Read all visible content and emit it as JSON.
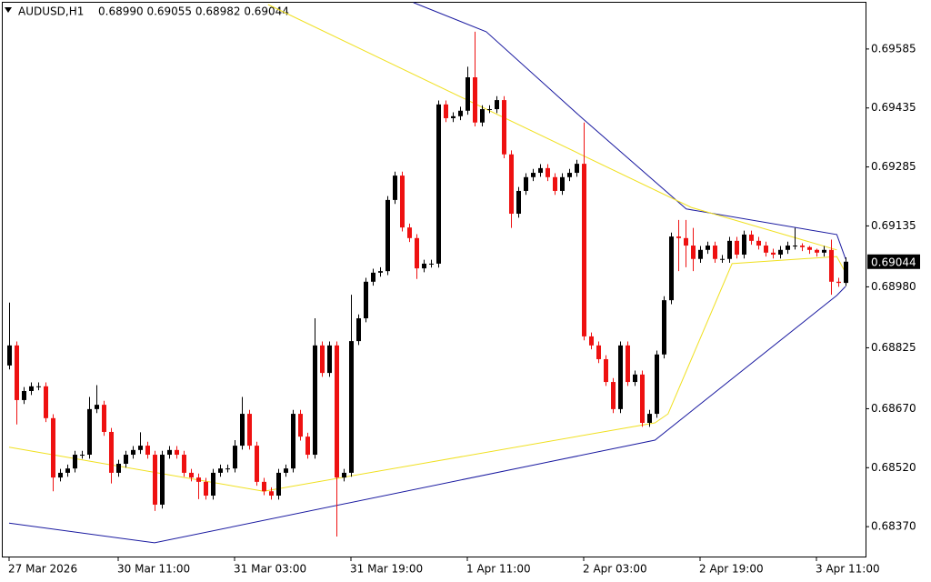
{
  "chart_data": {
    "type": "candlestick",
    "title": "AUDUSD,H1",
    "info": "0.68990 0.69055 0.68982 0.69044",
    "up_color": "#000000",
    "down_color": "#ee1111",
    "ylim": [
      0.68294,
      0.69705
    ],
    "yticks": [
      0.69585,
      0.69435,
      0.69285,
      0.69135,
      {
        "value": 0.6898,
        "label": "0.68980"
      },
      0.68825,
      {
        "value": 0.6867,
        "label": "0.68670"
      },
      {
        "value": 0.6852,
        "label": "0.68520"
      },
      {
        "value": 0.6837,
        "label": "0.68370"
      }
    ],
    "current_price": 0.69044,
    "categories": [
      "27 Mar 2026",
      null,
      null,
      null,
      null,
      null,
      null,
      null,
      null,
      null,
      null,
      null,
      null,
      null,
      null,
      "30 Mar 11:00",
      null,
      null,
      null,
      null,
      null,
      null,
      null,
      null,
      null,
      null,
      null,
      null,
      null,
      null,
      null,
      "31 Mar 03:00",
      null,
      null,
      null,
      null,
      null,
      null,
      null,
      null,
      null,
      null,
      null,
      null,
      null,
      null,
      null,
      "31 Mar 19:00",
      null,
      null,
      null,
      null,
      null,
      null,
      null,
      null,
      null,
      null,
      null,
      null,
      null,
      null,
      null,
      "1 Apr 11:00",
      null,
      null,
      null,
      null,
      null,
      null,
      null,
      null,
      null,
      null,
      null,
      null,
      null,
      null,
      null,
      "2 Apr 03:00",
      null,
      null,
      null,
      null,
      null,
      null,
      null,
      null,
      null,
      null,
      null,
      null,
      null,
      null,
      null,
      "2 Apr 19:00",
      null,
      null,
      null,
      null,
      null,
      null,
      null,
      null,
      null,
      null,
      null,
      null,
      null,
      null,
      null,
      "3 Apr 11:00",
      null,
      null,
      null,
      null
    ],
    "open": [
      0.6878,
      0.68831,
      0.68692,
      0.68715,
      0.68727,
      0.68727,
      0.68646,
      0.68495,
      0.68507,
      0.68518,
      0.68553,
      0.68553,
      0.68669,
      0.6868,
      0.68611,
      0.68507,
      0.6853,
      0.68553,
      0.68565,
      0.68576,
      0.68553,
      0.68426,
      0.68553,
      0.68565,
      0.68553,
      0.68507,
      0.68495,
      0.68484,
      0.68449,
      0.68507,
      0.68518,
      0.68518,
      0.68576,
      0.68657,
      0.68576,
      0.68484,
      0.6846,
      0.68449,
      0.68507,
      0.68518,
      0.68657,
      0.68599,
      0.68553,
      0.68831,
      0.68761,
      0.68831,
      0.68495,
      0.68507,
      0.68842,
      0.689,
      0.68993,
      0.69016,
      0.6902,
      0.69201,
      0.69263,
      0.69131,
      0.69104,
      0.69027,
      0.69039,
      0.69039,
      0.69444,
      0.69409,
      0.69414,
      0.69428,
      0.69513,
      0.69398,
      0.69432,
      0.69432,
      0.69455,
      0.69317,
      0.69166,
      0.69224,
      0.69259,
      0.6927,
      0.69282,
      0.69259,
      0.69224,
      0.69259,
      0.6927,
      0.69293,
      0.68854,
      0.68831,
      0.68796,
      0.68738,
      0.68669,
      0.68831,
      0.68738,
      0.68757,
      0.68634,
      0.68657,
      0.68808,
      0.68946,
      0.69108,
      0.69104,
      0.69085,
      0.69051,
      0.69074,
      0.69085,
      0.69051,
      0.69051,
      0.69097,
      0.69062,
      0.69113,
      0.69097,
      0.69085,
      0.69067,
      0.69062,
      0.69074,
      0.69085,
      0.69085,
      0.69081,
      0.69074,
      0.69067,
      0.69074,
      0.68993,
      0.6899
    ],
    "high": [
      0.6894,
      0.68841,
      0.68725,
      0.68737,
      0.68737,
      0.68737,
      0.68656,
      0.68517,
      0.68528,
      0.68563,
      0.68563,
      0.687,
      0.6873,
      0.6869,
      0.68621,
      0.6854,
      0.68563,
      0.68575,
      0.6861,
      0.68586,
      0.68563,
      0.68563,
      0.68575,
      0.68575,
      0.68563,
      0.68517,
      0.68505,
      0.68494,
      0.68517,
      0.68528,
      0.68528,
      0.6859,
      0.687,
      0.68667,
      0.68586,
      0.68494,
      0.6847,
      0.68517,
      0.68528,
      0.68667,
      0.68667,
      0.68609,
      0.689,
      0.68841,
      0.68841,
      0.68841,
      0.68517,
      0.6896,
      0.6891,
      0.69003,
      0.69026,
      0.6903,
      0.69211,
      0.69273,
      0.69273,
      0.69141,
      0.69114,
      0.69049,
      0.69049,
      0.69454,
      0.69454,
      0.69424,
      0.69438,
      0.6954,
      0.69629,
      0.69442,
      0.69442,
      0.69465,
      0.69465,
      0.69327,
      0.69234,
      0.69269,
      0.6928,
      0.69292,
      0.69292,
      0.69269,
      0.69269,
      0.6928,
      0.69303,
      0.69398,
      0.68864,
      0.68841,
      0.68806,
      0.68748,
      0.68841,
      0.68841,
      0.68767,
      0.68767,
      0.68667,
      0.68818,
      0.68956,
      0.69118,
      0.6915,
      0.6915,
      0.6913,
      0.69084,
      0.69095,
      0.69095,
      0.69061,
      0.69107,
      0.69107,
      0.69123,
      0.69123,
      0.69107,
      0.69095,
      0.69077,
      0.69084,
      0.69095,
      0.6913,
      0.69091,
      0.69084,
      0.69077,
      0.69084,
      0.691,
      0.69003,
      0.69055
    ],
    "low": [
      0.6877,
      0.6863,
      0.68682,
      0.68705,
      0.68717,
      0.68636,
      0.6846,
      0.68485,
      0.68497,
      0.68508,
      0.68543,
      0.68543,
      0.68659,
      0.68601,
      0.6848,
      0.68497,
      0.6852,
      0.68543,
      0.68555,
      0.68543,
      0.6841,
      0.68416,
      0.68543,
      0.68543,
      0.68497,
      0.68485,
      0.6844,
      0.68439,
      0.68439,
      0.68497,
      0.68508,
      0.68508,
      0.68566,
      0.68566,
      0.68474,
      0.6845,
      0.68439,
      0.68439,
      0.68497,
      0.68508,
      0.68589,
      0.68543,
      0.68543,
      0.68751,
      0.68751,
      0.68345,
      0.68485,
      0.68497,
      0.68832,
      0.6889,
      0.68983,
      0.69006,
      0.6901,
      0.69191,
      0.69121,
      0.69094,
      0.69,
      0.69017,
      0.69029,
      0.69029,
      0.69399,
      0.69399,
      0.69404,
      0.69418,
      0.69388,
      0.69388,
      0.69422,
      0.69422,
      0.69307,
      0.6913,
      0.69156,
      0.69214,
      0.69249,
      0.6926,
      0.69249,
      0.69214,
      0.69214,
      0.69249,
      0.6926,
      0.68844,
      0.68821,
      0.68786,
      0.68728,
      0.68659,
      0.68659,
      0.68728,
      0.68728,
      0.68624,
      0.68624,
      0.68647,
      0.68798,
      0.68936,
      0.6902,
      0.6903,
      0.6902,
      0.69041,
      0.69064,
      0.69041,
      0.69041,
      0.69041,
      0.69052,
      0.69052,
      0.69087,
      0.69075,
      0.69057,
      0.69052,
      0.69052,
      0.69064,
      0.69075,
      0.69071,
      0.69064,
      0.69057,
      0.69057,
      0.6896,
      0.6898,
      0.68982
    ],
    "close": [
      0.68831,
      0.68692,
      0.68715,
      0.68727,
      0.68727,
      0.68646,
      0.68495,
      0.68507,
      0.68518,
      0.68553,
      0.68553,
      0.68669,
      0.6868,
      0.68611,
      0.68507,
      0.6853,
      0.68553,
      0.68565,
      0.68576,
      0.68553,
      0.68426,
      0.68553,
      0.68565,
      0.68553,
      0.68507,
      0.68495,
      0.68484,
      0.68449,
      0.68507,
      0.68518,
      0.68518,
      0.68576,
      0.68657,
      0.68576,
      0.68484,
      0.6846,
      0.68449,
      0.68507,
      0.68518,
      0.68657,
      0.68599,
      0.68553,
      0.68831,
      0.68761,
      0.68831,
      0.68495,
      0.68507,
      0.68842,
      0.689,
      0.68993,
      0.69016,
      0.6902,
      0.69201,
      0.69263,
      0.69131,
      0.69104,
      0.69027,
      0.69039,
      0.69039,
      0.69444,
      0.69409,
      0.69414,
      0.69428,
      0.69513,
      0.69398,
      0.69432,
      0.69432,
      0.69455,
      0.69317,
      0.69166,
      0.69224,
      0.69259,
      0.6927,
      0.69282,
      0.69259,
      0.69224,
      0.69259,
      0.6927,
      0.69293,
      0.68854,
      0.68831,
      0.68796,
      0.68738,
      0.68669,
      0.68831,
      0.68738,
      0.68757,
      0.68634,
      0.68657,
      0.68808,
      0.68946,
      0.69108,
      0.69104,
      0.69085,
      0.69051,
      0.69074,
      0.69085,
      0.69051,
      0.69051,
      0.69097,
      0.69062,
      0.69113,
      0.69097,
      0.69085,
      0.69067,
      0.69062,
      0.69074,
      0.69085,
      0.69085,
      0.69081,
      0.69074,
      0.69067,
      0.69074,
      0.68993,
      0.6899,
      0.69044
    ],
    "lines": [
      {
        "color": "#1a1aa0",
        "x": [
          55.6,
          65.6,
          78.8,
          93.1,
          113.8,
          115
        ],
        "values": [
          0.69703,
          0.69629,
          0.69409,
          0.69178,
          0.69113,
          0.69051
        ]
      },
      {
        "color": "#1a1aa0",
        "x": [
          0,
          20,
          88.8,
          113.8,
          115
        ],
        "values": [
          0.68379,
          0.68329,
          0.6859,
          0.68958,
          0.68981
        ]
      },
      {
        "color": "#f0e020",
        "x": [
          35.6,
          93.8,
          113.8
        ],
        "values": [
          0.69698,
          0.69182,
          0.69074
        ]
      },
      {
        "color": "#f0e020",
        "x": [
          0,
          35,
          88.8,
          90.6,
          99.4,
          113.8,
          115
        ],
        "values": [
          0.68572,
          0.6846,
          0.68634,
          0.68657,
          0.69039,
          0.69057,
          0.69016
        ]
      }
    ]
  }
}
